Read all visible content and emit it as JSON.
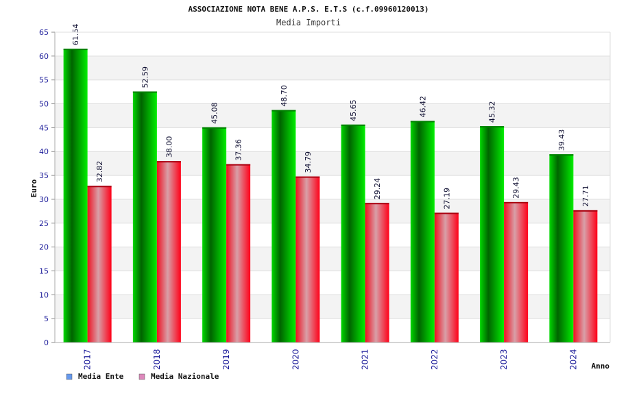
{
  "chart_data": {
    "type": "bar",
    "title": "ASSOCIAZIONE NOTA BENE A.P.S. E.T.S (c.f.09960120013)",
    "subtitle": "Media Importi",
    "xlabel": "Anno",
    "ylabel": "Euro",
    "categories": [
      "2017",
      "2018",
      "2019",
      "2020",
      "2021",
      "2022",
      "2023",
      "2024"
    ],
    "ylim": [
      0,
      65
    ],
    "yticks": [
      "0",
      "5",
      "10",
      "15",
      "20",
      "25",
      "30",
      "35",
      "40",
      "45",
      "50",
      "55",
      "60",
      "65"
    ],
    "grid": true,
    "legend_position": "bottom-left",
    "series": [
      {
        "name": "Media Ente",
        "values": [
          61.54,
          52.59,
          45.08,
          48.7,
          45.65,
          46.42,
          45.32,
          39.43
        ],
        "labels": [
          "61.54",
          "52.59",
          "45.08",
          "48.70",
          "45.65",
          "46.42",
          "45.32",
          "39.43"
        ],
        "color": "#00cc00",
        "legend_color": "#6699ee"
      },
      {
        "name": "Media Nazionale",
        "values": [
          32.82,
          38.0,
          37.36,
          34.79,
          29.24,
          27.19,
          29.43,
          27.71
        ],
        "labels": [
          "32.82",
          "38.00",
          "37.36",
          "34.79",
          "29.24",
          "27.19",
          "29.43",
          "27.71"
        ],
        "color": "#ee1122",
        "legend_color": "#dd88bb"
      }
    ]
  }
}
